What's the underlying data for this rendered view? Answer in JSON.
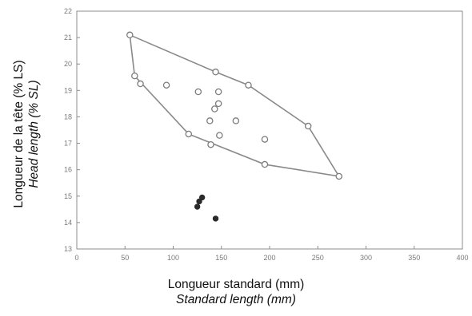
{
  "chart_data": {
    "type": "scatter",
    "xlabel": "Longueur standard (mm)",
    "xlabel_en": "Standard length (mm)",
    "ylabel": "Longueur de la tête (% LS)",
    "ylabel_en": "Head length (% SL)",
    "xlim": [
      0,
      400
    ],
    "ylim": [
      13,
      22
    ],
    "xticks": [
      "0",
      "50",
      "100",
      "150",
      "200",
      "250",
      "300",
      "350",
      "400"
    ],
    "yticks": [
      "13",
      "14",
      "15",
      "16",
      "17",
      "18",
      "19",
      "20",
      "21",
      "22"
    ],
    "grid": false,
    "series": [
      {
        "marker": "open-circle",
        "points": [
          [
            55,
            21.1
          ],
          [
            60,
            19.55
          ],
          [
            66,
            19.25
          ],
          [
            93,
            19.2
          ],
          [
            126,
            18.95
          ],
          [
            147,
            18.95
          ],
          [
            147,
            18.5
          ],
          [
            143,
            18.3
          ],
          [
            165,
            17.85
          ],
          [
            138,
            17.85
          ],
          [
            148,
            17.3
          ],
          [
            116,
            17.35
          ],
          [
            139,
            16.95
          ],
          [
            195,
            17.15
          ],
          [
            144,
            19.7
          ],
          [
            178,
            19.2
          ],
          [
            240,
            17.65
          ],
          [
            195,
            16.2
          ],
          [
            272,
            15.75
          ]
        ]
      },
      {
        "marker": "filled-circle",
        "points": [
          [
            130,
            14.95
          ],
          [
            127,
            14.8
          ],
          [
            125,
            14.6
          ],
          [
            144,
            14.15
          ]
        ]
      }
    ],
    "hull": [
      [
        55,
        21.1
      ],
      [
        144,
        19.7
      ],
      [
        178,
        19.2
      ],
      [
        240,
        17.65
      ],
      [
        272,
        15.75
      ],
      [
        195,
        16.2
      ],
      [
        116,
        17.35
      ],
      [
        60,
        19.55
      ],
      [
        55,
        21.1
      ]
    ],
    "colors": {
      "open_marker": "#7d7d7d",
      "filled_marker": "#2a2a2a",
      "hull": "#8a8a8a",
      "axis": "#8c8c8c"
    }
  }
}
